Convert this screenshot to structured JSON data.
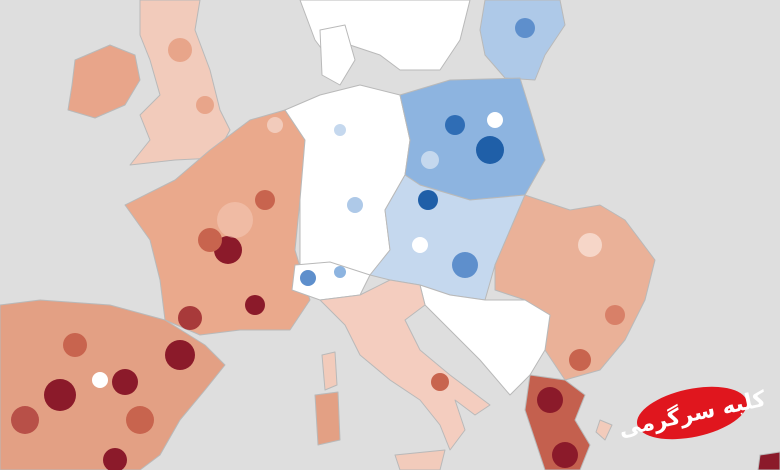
{
  "logo": {
    "text": "کلبه سرگرمی"
  }
}
